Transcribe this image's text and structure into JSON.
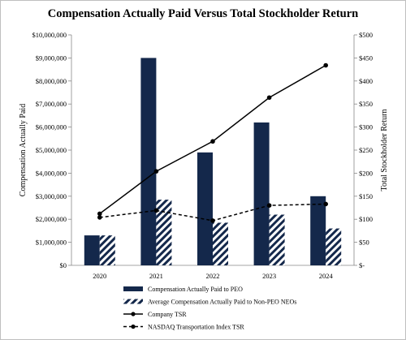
{
  "chart_data": {
    "type": "bar",
    "title": "Compensation Actually Paid Versus Total Stockholder Return",
    "categories": [
      "2020",
      "2021",
      "2022",
      "2023",
      "2024"
    ],
    "ylabel": "Compensation Actually Paid",
    "y2label": "Total Stockholder Return",
    "ylim": [
      0,
      10000000
    ],
    "y2lim": [
      0,
      500
    ],
    "yticks": [
      "$0",
      "$1,000,000",
      "$2,000,000",
      "$3,000,000",
      "$4,000,000",
      "$5,000,000",
      "$6,000,000",
      "$7,000,000",
      "$8,000,000",
      "$9,000,000",
      "$10,000,000"
    ],
    "y2ticks": [
      "$-",
      "$50",
      "$100",
      "$150",
      "$200",
      "$250",
      "$300",
      "$350",
      "$400",
      "$450",
      "$500"
    ],
    "bar_series": [
      {
        "name": "Compensation Actually Paid to PEO",
        "color": "#14284b",
        "pattern": "solid",
        "values": [
          1300000,
          9000000,
          4900000,
          6200000,
          3000000
        ]
      },
      {
        "name": "Average Compensation Actually Paid to Non-PEO NEOs",
        "color": "#14284b",
        "pattern": "diagonal-hatch",
        "values": [
          1300000,
          2850000,
          1850000,
          2200000,
          1600000
        ]
      }
    ],
    "line_series": [
      {
        "name": "Company TSR",
        "color": "#000000",
        "style": "solid",
        "marker": "circle",
        "values": [
          112,
          204,
          269,
          364,
          434
        ]
      },
      {
        "name": "NASDAQ Transportation Index TSR",
        "color": "#000000",
        "style": "dashed",
        "marker": "circle",
        "values": [
          104,
          119,
          97,
          130,
          133
        ]
      }
    ],
    "legend_position": "bottom",
    "grid": false
  }
}
